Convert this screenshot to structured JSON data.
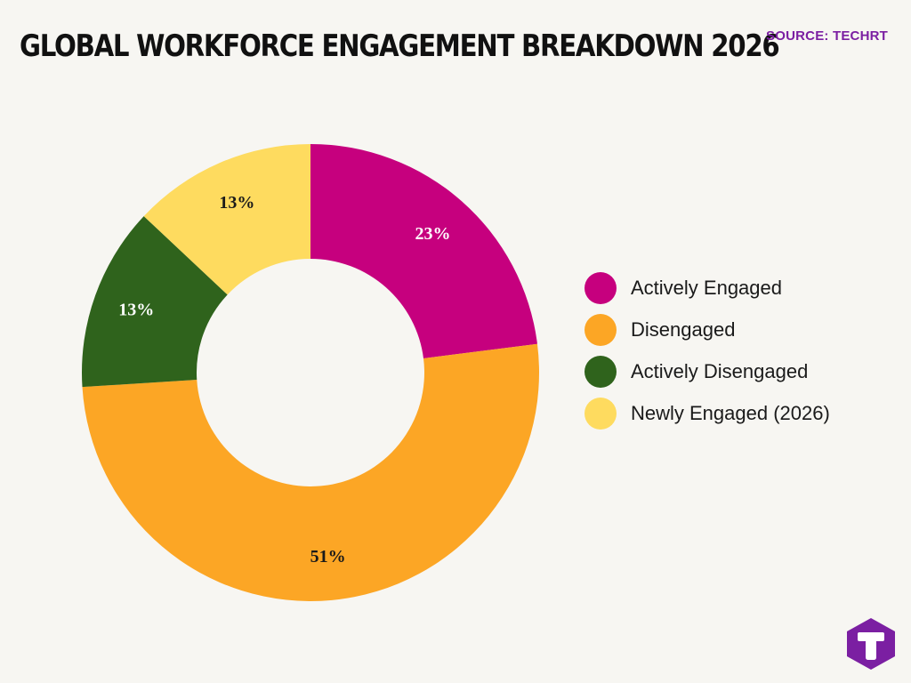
{
  "header": {
    "title": "GLOBAL WORKFORCE ENGAGEMENT BREAKDOWN 2026",
    "source": "SOURCE: TECHRT"
  },
  "colors": {
    "background": "#f7f6f2",
    "title": "#111111",
    "source": "#7b1fa2",
    "logo": "#7b1fa2",
    "slice_label": "#1a1a1a",
    "slice_label_on_magenta": "#ffffff"
  },
  "chart_data": {
    "type": "pie",
    "variant": "donut",
    "title": "GLOBAL WORKFORCE ENGAGEMENT BREAKDOWN 2026",
    "labels": [
      "Actively Engaged",
      "Disengaged",
      "Actively Disengaged",
      "Newly Engaged (2026)"
    ],
    "values": [
      23,
      51,
      13,
      13
    ],
    "value_labels": [
      "23%",
      "51%",
      "13%",
      "13%"
    ],
    "colors": [
      "#c6007e",
      "#fca625",
      "#2f631c",
      "#fedb5f"
    ],
    "label_colors": [
      "#ffffff",
      "#1a1a1a",
      "#ffffff",
      "#1a1a1a"
    ],
    "start_angle_deg": 0,
    "direction": "clockwise",
    "legend_position": "right"
  },
  "legend": {
    "items": [
      {
        "label": "Actively Engaged",
        "color": "#c6007e"
      },
      {
        "label": "Disengaged",
        "color": "#fca625"
      },
      {
        "label": "Actively Disengaged",
        "color": "#2f631c"
      },
      {
        "label": "Newly Engaged (2026)",
        "color": "#fedb5f"
      }
    ]
  },
  "logo": {
    "icon": "letter-t-hexagon-logo"
  }
}
